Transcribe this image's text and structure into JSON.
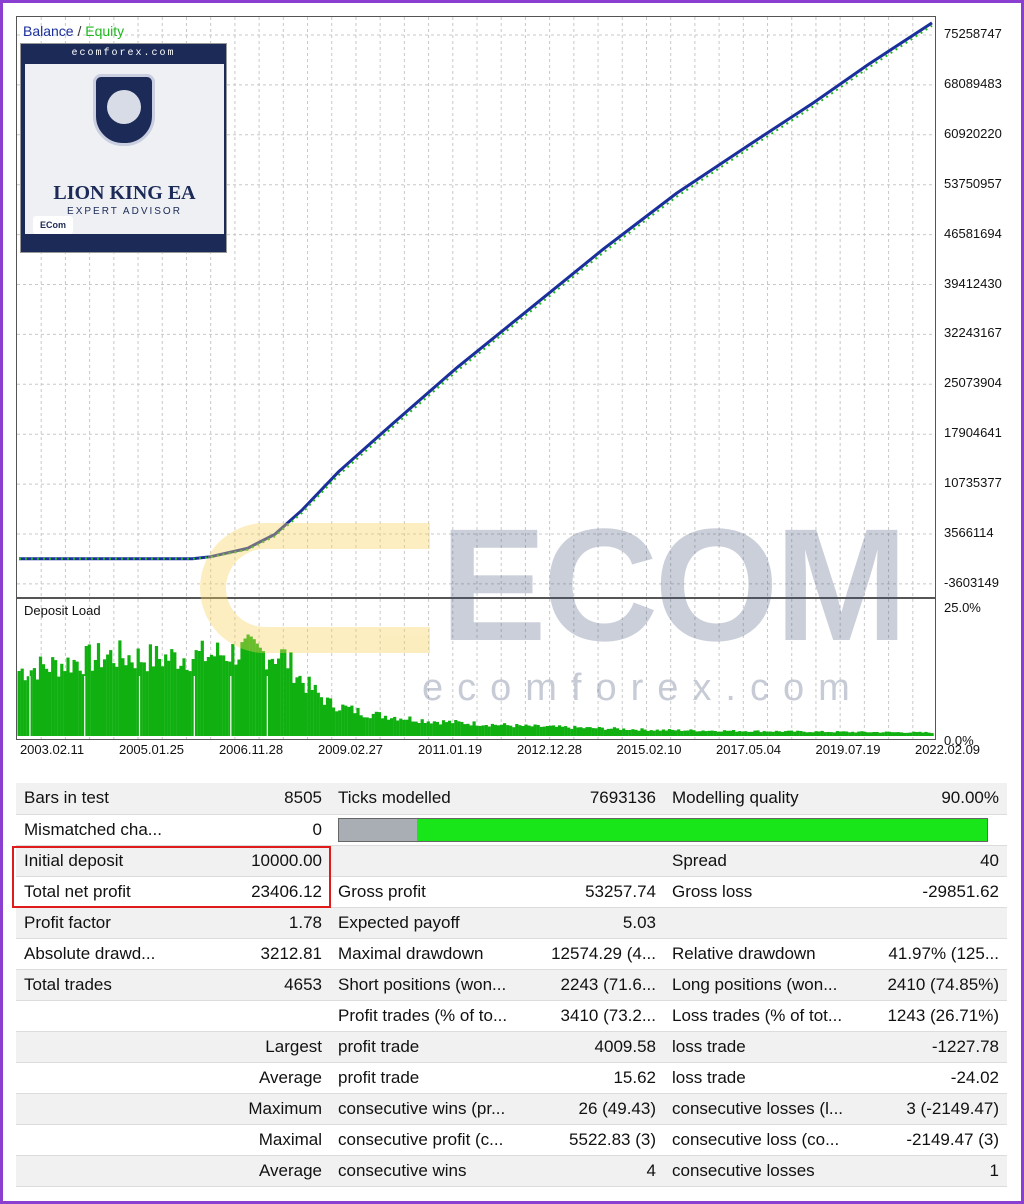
{
  "legend": {
    "balance": "Balance",
    "separator": "/",
    "equity": "Equity"
  },
  "logo": {
    "site": "ecomforex.com",
    "title": "LION KING EA",
    "subtitle": "EXPERT ADVISOR",
    "badge": "ECom"
  },
  "watermark": {
    "brand": "ECOM",
    "url": "ecomforex.com"
  },
  "colors": {
    "balance": "#1a2f9c",
    "equity": "#22b822",
    "deposit_load": "#10b010",
    "accent_frame": "#8a3fd1",
    "highlight": "#e01b1b"
  },
  "chart_data": [
    {
      "type": "line",
      "y_ticks": [
        "75258747",
        "68089483",
        "60920220",
        "53750957",
        "46581694",
        "39412430",
        "32243167",
        "25073904",
        "17904641",
        "10735377",
        "3566114",
        "-3603149"
      ],
      "ylim": [
        -3603149,
        78000000
      ],
      "grid": true,
      "series": [
        {
          "name": "Balance",
          "x": [
            0.0,
            0.19,
            0.21,
            0.25,
            0.28,
            0.31,
            0.35,
            0.41,
            0.48,
            0.56,
            0.64,
            0.72,
            0.8,
            0.87,
            0.93,
            1.0
          ],
          "values": [
            0,
            0,
            300000,
            1500000,
            3500000,
            7000000,
            12500000,
            19500000,
            27500000,
            36000000,
            44500000,
            52500000,
            59500000,
            65500000,
            71000000,
            77000000
          ]
        },
        {
          "name": "Equity",
          "x": [
            0.0,
            0.19,
            0.21,
            0.25,
            0.28,
            0.31,
            0.35,
            0.41,
            0.48,
            0.56,
            0.64,
            0.72,
            0.8,
            0.87,
            0.93,
            1.0
          ],
          "values": [
            0,
            0,
            250000,
            1300000,
            3200000,
            6600000,
            12000000,
            19000000,
            27000000,
            35500000,
            44000000,
            52000000,
            59000000,
            65000000,
            70500000,
            76600000
          ]
        }
      ]
    },
    {
      "type": "bar",
      "title": "Deposit Load",
      "y_ticks": [
        "25.0%",
        "0.0%"
      ],
      "ylim": [
        0,
        25
      ],
      "x_ticks": [
        "2003.02.11",
        "2005.01.25",
        "2006.11.28",
        "2009.02.27",
        "2011.01.19",
        "2012.12.28",
        "2015.02.10",
        "2017.05.04",
        "2019.07.19",
        "2022.02.09"
      ],
      "profile": [
        {
          "x": 0.0,
          "value": 13
        },
        {
          "x": 0.05,
          "value": 14.5
        },
        {
          "x": 0.1,
          "value": 16
        },
        {
          "x": 0.15,
          "value": 15.5
        },
        {
          "x": 0.2,
          "value": 16
        },
        {
          "x": 0.25,
          "value": 17
        },
        {
          "x": 0.29,
          "value": 16
        },
        {
          "x": 0.31,
          "value": 11
        },
        {
          "x": 0.34,
          "value": 6.5
        },
        {
          "x": 0.38,
          "value": 4.5
        },
        {
          "x": 0.45,
          "value": 3
        },
        {
          "x": 0.55,
          "value": 2
        },
        {
          "x": 0.7,
          "value": 1.2
        },
        {
          "x": 0.85,
          "value": 0.9
        },
        {
          "x": 1.0,
          "value": 0.7
        }
      ]
    }
  ],
  "report": {
    "rows": [
      {
        "c1": "Bars in test",
        "c2": "8505",
        "c3": "Ticks modelled",
        "c4": "7693136",
        "c5": "Modelling quality",
        "c6": "90.00%"
      },
      {
        "c1": "Mismatched cha...",
        "c2": "0",
        "bar_fraction": 0.12
      },
      {
        "c1": "Initial deposit",
        "c2": "10000.00",
        "c3": "",
        "c4": "",
        "c5": "Spread",
        "c6": "40"
      },
      {
        "c1": "Total net profit",
        "c2": "23406.12",
        "c3": "Gross profit",
        "c4": "53257.74",
        "c5": "Gross loss",
        "c6": "-29851.62"
      },
      {
        "c1": "Profit factor",
        "c2": "1.78",
        "c3": "Expected payoff",
        "c4": "5.03",
        "c5": "",
        "c6": ""
      },
      {
        "c1": "Absolute drawd...",
        "c2": "3212.81",
        "c3": "Maximal drawdown",
        "c4": "12574.29 (4...",
        "c5": "Relative drawdown",
        "c6": "41.97% (125..."
      },
      {
        "c1": "Total trades",
        "c2": "4653",
        "c3": "Short positions (won...",
        "c4": "2243 (71.6...",
        "c5": "Long positions (won...",
        "c6": "2410 (74.85%)"
      },
      {
        "c1": "",
        "c2": "",
        "c3": "Profit trades (% of to...",
        "c4": "3410 (73.2...",
        "c5": "Loss trades (% of tot...",
        "c6": "1243 (26.71%)"
      },
      {
        "c1": "",
        "c2": "Largest",
        "c3": "profit trade",
        "c4": "4009.58",
        "c5": "loss trade",
        "c6": "-1227.78"
      },
      {
        "c1": "",
        "c2": "Average",
        "c3": "profit trade",
        "c4": "15.62",
        "c5": "loss trade",
        "c6": "-24.02"
      },
      {
        "c1": "",
        "c2": "Maximum",
        "c3": "consecutive wins (pr...",
        "c4": "26 (49.43)",
        "c5": "consecutive losses (l...",
        "c6": "3 (-2149.47)"
      },
      {
        "c1": "",
        "c2": "Maximal",
        "c3": "consecutive profit (c...",
        "c4": "5522.83 (3)",
        "c5": "consecutive loss (co...",
        "c6": "-2149.47 (3)"
      },
      {
        "c1": "",
        "c2": "Average",
        "c3": "consecutive wins",
        "c4": "4",
        "c5": "consecutive losses",
        "c6": "1"
      }
    ]
  }
}
